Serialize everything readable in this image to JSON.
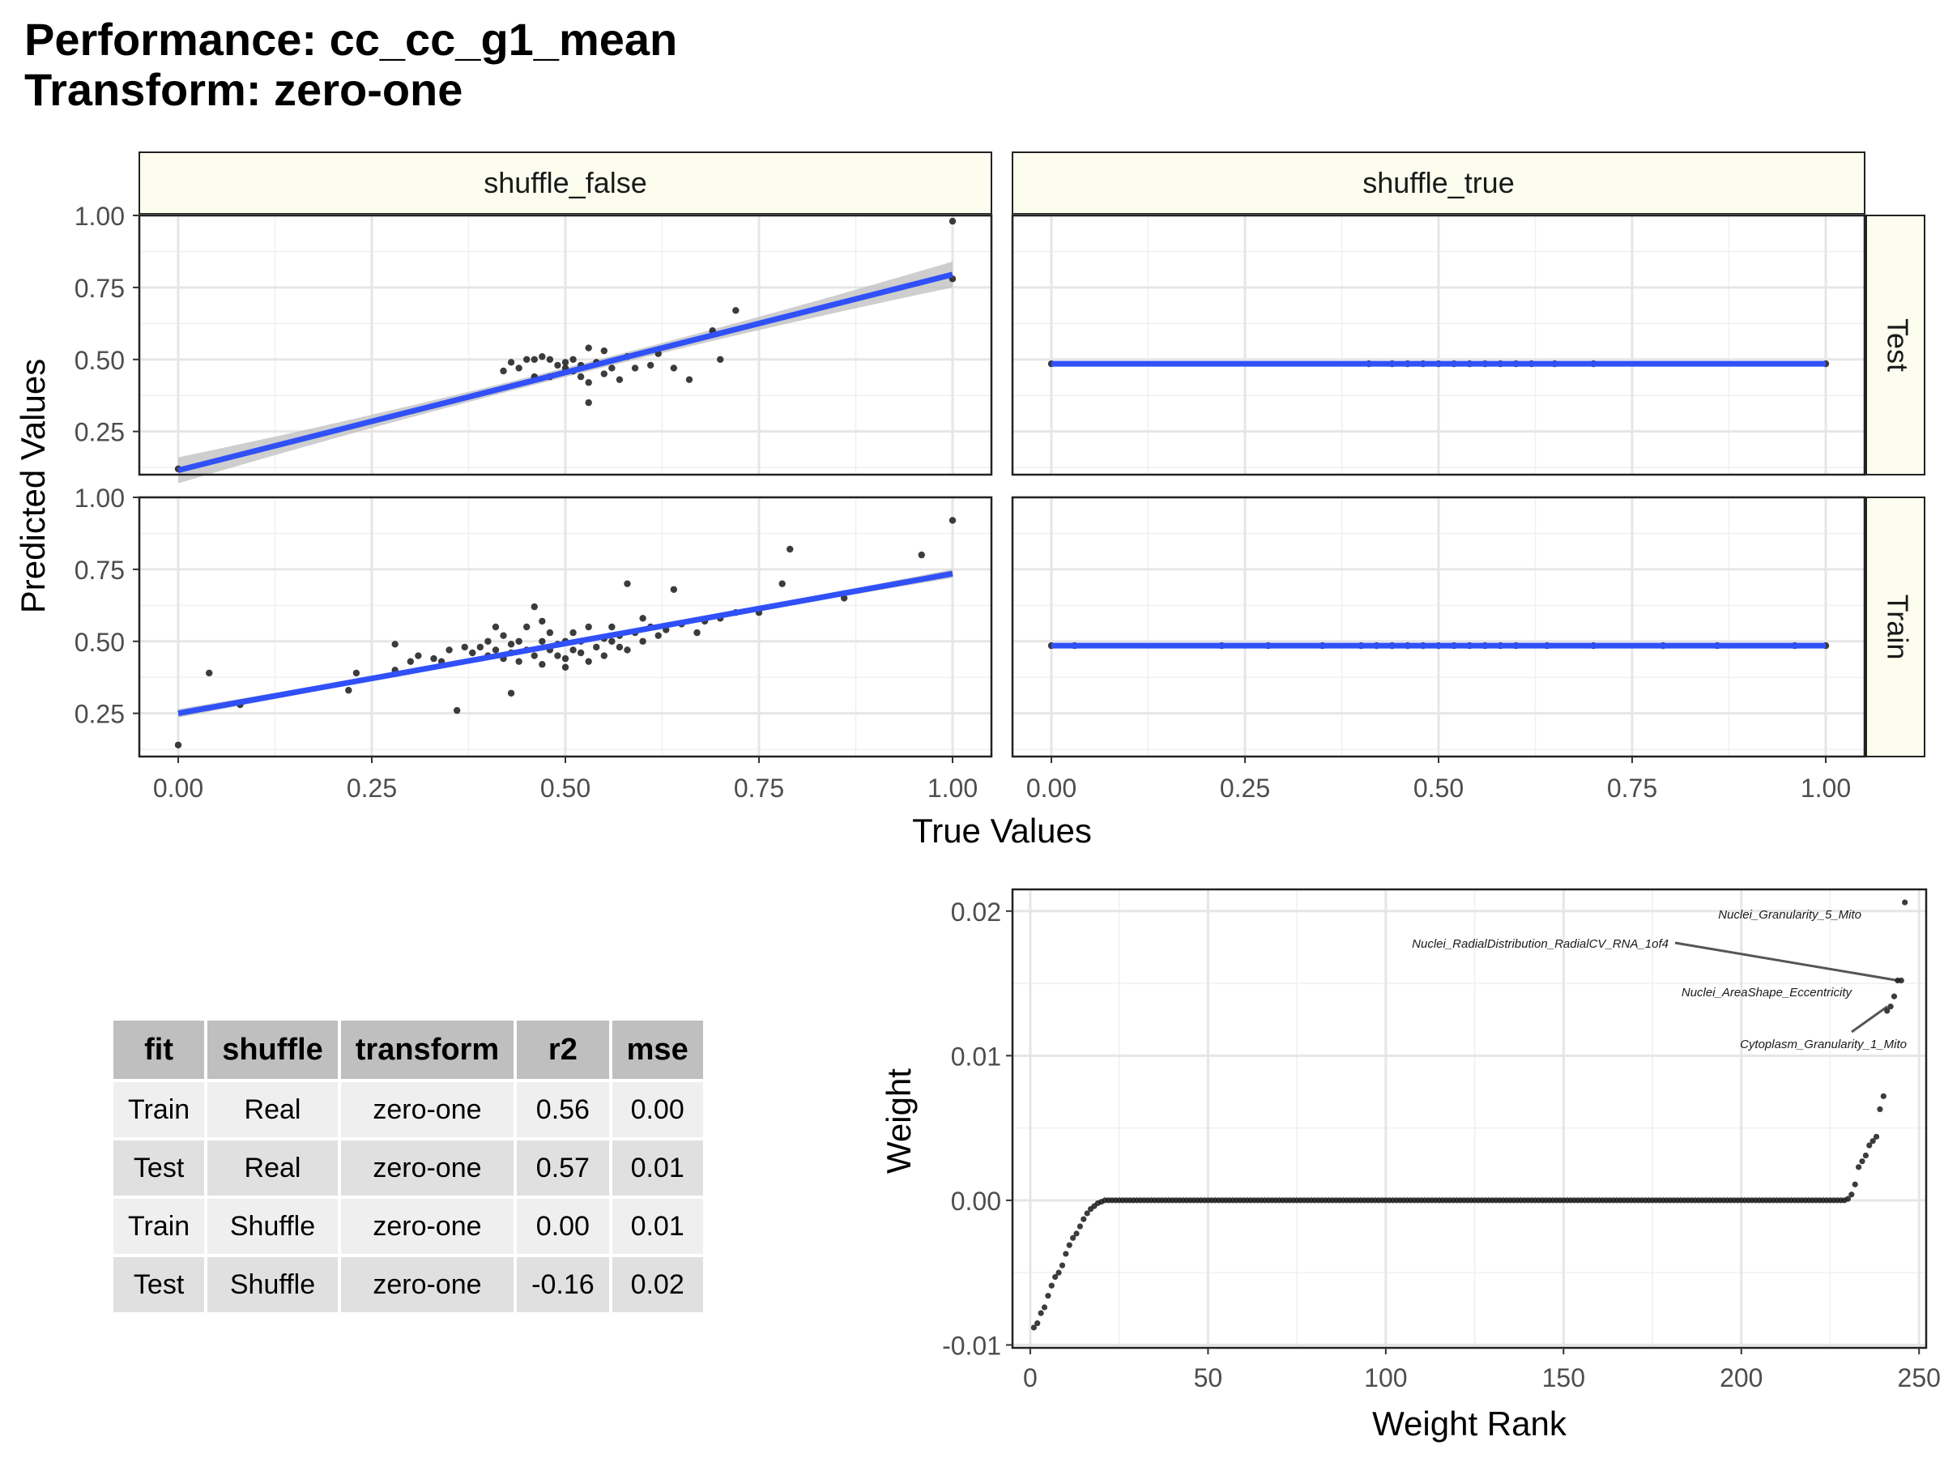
{
  "title": {
    "line1": "Performance: cc_cc_g1_mean",
    "line2": "Transform: zero-one"
  },
  "colors": {
    "points": "#1a1a1a",
    "fit_line": "#3050f8",
    "ribbon": "#bdbdbd",
    "strip_fill": "#fcfdee",
    "grid": "#e6e6e6",
    "table_header": "#bfbfbf",
    "table_row_light": "#efefef",
    "table_row_dark": "#e0e0e0"
  },
  "chart_data": [
    {
      "type": "scatter",
      "description_of_facets": "faceted scatter with linear fit",
      "xlabel": "True Values",
      "ylabel": "Predicted Values",
      "xlim": [
        0,
        1
      ],
      "ylim": [
        0.1,
        1.0
      ],
      "x_ticks": [
        "0.00",
        "0.25",
        "0.50",
        "0.75",
        "1.00"
      ],
      "y_ticks": [
        "0.25",
        "0.50",
        "0.75",
        "1.00"
      ],
      "col_facets": [
        "shuffle_false",
        "shuffle_true"
      ],
      "row_facets": [
        "Test",
        "Train"
      ],
      "panels": [
        {
          "col": "shuffle_false",
          "row": "Test",
          "fit": {
            "x0": 0.0,
            "y0": 0.115,
            "x1": 1.0,
            "y1": 0.795,
            "band": 0.045
          },
          "points": [
            [
              0.0,
              0.12
            ],
            [
              0.42,
              0.46
            ],
            [
              0.43,
              0.49
            ],
            [
              0.44,
              0.47
            ],
            [
              0.45,
              0.5
            ],
            [
              0.46,
              0.44
            ],
            [
              0.47,
              0.51
            ],
            [
              0.48,
              0.5
            ],
            [
              0.49,
              0.48
            ],
            [
              0.5,
              0.47
            ],
            [
              0.5,
              0.49
            ],
            [
              0.51,
              0.46
            ],
            [
              0.52,
              0.48
            ],
            [
              0.52,
              0.44
            ],
            [
              0.53,
              0.42
            ],
            [
              0.53,
              0.54
            ],
            [
              0.54,
              0.49
            ],
            [
              0.55,
              0.53
            ],
            [
              0.55,
              0.45
            ],
            [
              0.56,
              0.47
            ],
            [
              0.57,
              0.43
            ],
            [
              0.58,
              0.51
            ],
            [
              0.59,
              0.47
            ],
            [
              0.61,
              0.48
            ],
            [
              0.62,
              0.52
            ],
            [
              0.64,
              0.47
            ],
            [
              0.66,
              0.43
            ],
            [
              0.69,
              0.6
            ],
            [
              0.7,
              0.5
            ],
            [
              0.72,
              0.67
            ],
            [
              0.53,
              0.35
            ],
            [
              0.48,
              0.44
            ],
            [
              0.46,
              0.5
            ],
            [
              0.51,
              0.5
            ],
            [
              1.0,
              0.98
            ],
            [
              1.0,
              0.78
            ]
          ]
        },
        {
          "col": "shuffle_true",
          "row": "Test",
          "fit": {
            "x0": 0.0,
            "y0": 0.485,
            "x1": 1.0,
            "y1": 0.485,
            "band": 0.0
          },
          "points": [
            [
              0.0,
              0.485
            ],
            [
              0.41,
              0.485
            ],
            [
              0.44,
              0.485
            ],
            [
              0.46,
              0.485
            ],
            [
              0.48,
              0.485
            ],
            [
              0.5,
              0.485
            ],
            [
              0.52,
              0.485
            ],
            [
              0.54,
              0.485
            ],
            [
              0.56,
              0.485
            ],
            [
              0.58,
              0.485
            ],
            [
              0.6,
              0.485
            ],
            [
              0.62,
              0.485
            ],
            [
              0.65,
              0.485
            ],
            [
              0.7,
              0.485
            ],
            [
              1.0,
              0.485
            ]
          ]
        },
        {
          "col": "shuffle_false",
          "row": "Train",
          "fit": {
            "x0": 0.0,
            "y0": 0.25,
            "x1": 1.0,
            "y1": 0.735,
            "band": 0.015
          },
          "points": [
            [
              0.0,
              0.14
            ],
            [
              0.04,
              0.39
            ],
            [
              0.08,
              0.28
            ],
            [
              0.22,
              0.33
            ],
            [
              0.23,
              0.39
            ],
            [
              0.28,
              0.49
            ],
            [
              0.28,
              0.4
            ],
            [
              0.3,
              0.43
            ],
            [
              0.31,
              0.45
            ],
            [
              0.33,
              0.44
            ],
            [
              0.34,
              0.43
            ],
            [
              0.35,
              0.47
            ],
            [
              0.36,
              0.26
            ],
            [
              0.37,
              0.48
            ],
            [
              0.38,
              0.46
            ],
            [
              0.39,
              0.48
            ],
            [
              0.4,
              0.45
            ],
            [
              0.4,
              0.5
            ],
            [
              0.41,
              0.47
            ],
            [
              0.42,
              0.44
            ],
            [
              0.42,
              0.52
            ],
            [
              0.43,
              0.46
            ],
            [
              0.43,
              0.49
            ],
            [
              0.44,
              0.43
            ],
            [
              0.44,
              0.5
            ],
            [
              0.45,
              0.47
            ],
            [
              0.45,
              0.55
            ],
            [
              0.46,
              0.45
            ],
            [
              0.46,
              0.62
            ],
            [
              0.47,
              0.5
            ],
            [
              0.47,
              0.42
            ],
            [
              0.48,
              0.47
            ],
            [
              0.48,
              0.53
            ],
            [
              0.49,
              0.45
            ],
            [
              0.49,
              0.49
            ],
            [
              0.5,
              0.44
            ],
            [
              0.5,
              0.5
            ],
            [
              0.51,
              0.47
            ],
            [
              0.51,
              0.53
            ],
            [
              0.52,
              0.46
            ],
            [
              0.52,
              0.5
            ],
            [
              0.53,
              0.43
            ],
            [
              0.53,
              0.55
            ],
            [
              0.54,
              0.48
            ],
            [
              0.55,
              0.51
            ],
            [
              0.55,
              0.45
            ],
            [
              0.56,
              0.5
            ],
            [
              0.56,
              0.55
            ],
            [
              0.57,
              0.48
            ],
            [
              0.57,
              0.52
            ],
            [
              0.58,
              0.47
            ],
            [
              0.58,
              0.7
            ],
            [
              0.59,
              0.53
            ],
            [
              0.6,
              0.5
            ],
            [
              0.6,
              0.58
            ],
            [
              0.61,
              0.55
            ],
            [
              0.62,
              0.52
            ],
            [
              0.63,
              0.54
            ],
            [
              0.64,
              0.68
            ],
            [
              0.65,
              0.56
            ],
            [
              0.67,
              0.53
            ],
            [
              0.68,
              0.57
            ],
            [
              0.7,
              0.58
            ],
            [
              0.72,
              0.6
            ],
            [
              0.75,
              0.6
            ],
            [
              0.78,
              0.7
            ],
            [
              0.79,
              0.82
            ],
            [
              0.86,
              0.65
            ],
            [
              0.96,
              0.8
            ],
            [
              1.0,
              0.92
            ],
            [
              0.43,
              0.32
            ],
            [
              0.5,
              0.41
            ],
            [
              0.47,
              0.57
            ],
            [
              0.41,
              0.55
            ]
          ]
        },
        {
          "col": "shuffle_true",
          "row": "Train",
          "fit": {
            "x0": 0.0,
            "y0": 0.485,
            "x1": 1.0,
            "y1": 0.485,
            "band": 0.0
          },
          "points": [
            [
              0.0,
              0.485
            ],
            [
              0.03,
              0.485
            ],
            [
              0.22,
              0.485
            ],
            [
              0.28,
              0.485
            ],
            [
              0.35,
              0.485
            ],
            [
              0.4,
              0.485
            ],
            [
              0.42,
              0.485
            ],
            [
              0.44,
              0.485
            ],
            [
              0.46,
              0.485
            ],
            [
              0.48,
              0.485
            ],
            [
              0.5,
              0.485
            ],
            [
              0.52,
              0.485
            ],
            [
              0.54,
              0.485
            ],
            [
              0.56,
              0.485
            ],
            [
              0.58,
              0.485
            ],
            [
              0.6,
              0.485
            ],
            [
              0.64,
              0.485
            ],
            [
              0.7,
              0.485
            ],
            [
              0.79,
              0.485
            ],
            [
              0.86,
              0.485
            ],
            [
              0.96,
              0.485
            ],
            [
              1.0,
              0.485
            ]
          ]
        }
      ]
    },
    {
      "type": "scatter",
      "xlabel": "Weight Rank",
      "ylabel": "Weight",
      "xlim": [
        -5,
        252
      ],
      "ylim": [
        -0.0102,
        0.0215
      ],
      "x_ticks": [
        "0",
        "50",
        "100",
        "150",
        "200",
        "250"
      ],
      "y_ticks": [
        "-0.01",
        "0.00",
        "0.01",
        "0.02"
      ],
      "head_points": [
        [
          1,
          -0.0088
        ],
        [
          2,
          -0.0085
        ],
        [
          3,
          -0.0078
        ],
        [
          4,
          -0.0074
        ],
        [
          5,
          -0.0066
        ],
        [
          6,
          -0.0059
        ],
        [
          7,
          -0.0053
        ],
        [
          8,
          -0.005
        ],
        [
          9,
          -0.0045
        ],
        [
          10,
          -0.0037
        ],
        [
          11,
          -0.0031
        ],
        [
          12,
          -0.0026
        ],
        [
          13,
          -0.0023
        ],
        [
          14,
          -0.0018
        ],
        [
          15,
          -0.0013
        ],
        [
          16,
          -0.0009
        ],
        [
          17,
          -0.0006
        ],
        [
          18,
          -0.0004
        ],
        [
          19,
          -0.0002
        ],
        [
          20,
          -0.0001
        ],
        [
          21,
          0.0
        ]
      ],
      "zero_range": [
        22,
        229
      ],
      "tail_points": [
        [
          230,
          0.0001
        ],
        [
          231,
          0.0004
        ],
        [
          232,
          0.0011
        ],
        [
          233,
          0.0023
        ],
        [
          234,
          0.0027
        ],
        [
          235,
          0.0031
        ],
        [
          236,
          0.0038
        ],
        [
          237,
          0.0041
        ],
        [
          238,
          0.0044
        ],
        [
          239,
          0.0063
        ],
        [
          240,
          0.0072
        ],
        [
          241,
          0.0131
        ],
        [
          242,
          0.0134
        ],
        [
          243,
          0.0141
        ],
        [
          244,
          0.0152
        ],
        [
          245,
          0.0152
        ],
        [
          246,
          0.0206
        ]
      ],
      "annotations": [
        {
          "label": "Nuclei_Granularity_5_Mito",
          "point": [
            246,
            0.0206
          ]
        },
        {
          "label": "Nuclei_RadialDistribution_RadialCV_RNA_1of4",
          "point": [
            245,
            0.0152
          ]
        },
        {
          "label": "Nuclei_AreaShape_Eccentricity",
          "point": [
            244,
            0.0152
          ]
        },
        {
          "label": "Cytoplasm_Granularity_1_Mito",
          "point": [
            242,
            0.0134
          ]
        }
      ]
    }
  ],
  "table": {
    "headers": [
      "fit",
      "shuffle",
      "transform",
      "r2",
      "mse"
    ],
    "rows": [
      [
        "Train",
        "Real",
        "zero-one",
        "0.56",
        "0.00"
      ],
      [
        "Test",
        "Real",
        "zero-one",
        "0.57",
        "0.01"
      ],
      [
        "Train",
        "Shuffle",
        "zero-one",
        "0.00",
        "0.01"
      ],
      [
        "Test",
        "Shuffle",
        "zero-one",
        "-0.16",
        "0.02"
      ]
    ]
  }
}
